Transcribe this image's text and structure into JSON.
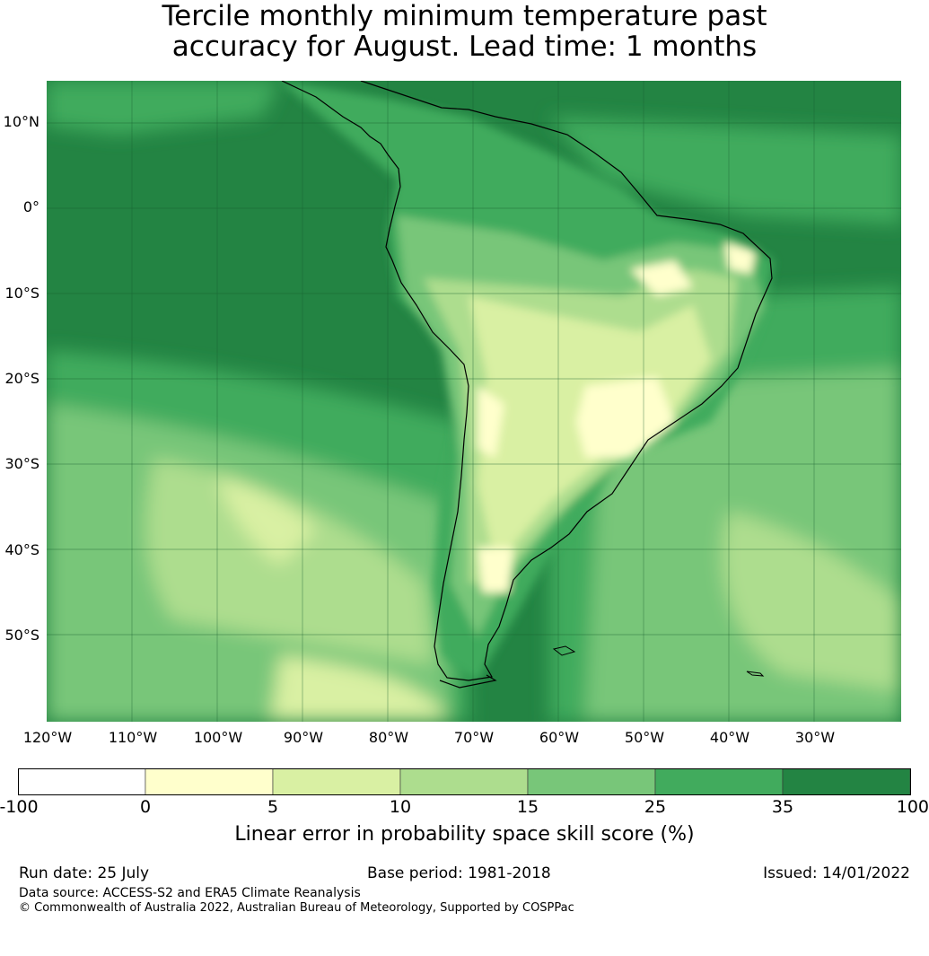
{
  "title_line1": "Tercile monthly minimum temperature past",
  "title_line2": "accuracy for August. Lead time: 1 months",
  "lat_labels": [
    "10°N",
    "0°",
    "10°S",
    "20°S",
    "30°S",
    "40°S",
    "50°S"
  ],
  "lon_labels": [
    "120°W",
    "110°W",
    "100°W",
    "90°W",
    "80°W",
    "70°W",
    "60°W",
    "50°W",
    "40°W",
    "30°W"
  ],
  "colorbar": {
    "ticks": [
      "-100",
      "0",
      "5",
      "10",
      "15",
      "25",
      "35",
      "100"
    ],
    "colors": [
      "#ffffff",
      "#ffffcc",
      "#d9f0a3",
      "#addd8e",
      "#78c679",
      "#41ab5d",
      "#238443"
    ],
    "label": "Linear error in probability space skill score (%)"
  },
  "footer": {
    "run_date": "Run date: 25 July",
    "base_period": "Base period: 1981-2018",
    "issued": "Issued: 14/01/2022",
    "data_source": "Data source: ACCESS-S2 and ERA5 Climate Reanalysis",
    "copyright": "© Commonwealth of Australia 2022, Australian Bureau of Meteorology, Supported by COSPPac"
  }
}
